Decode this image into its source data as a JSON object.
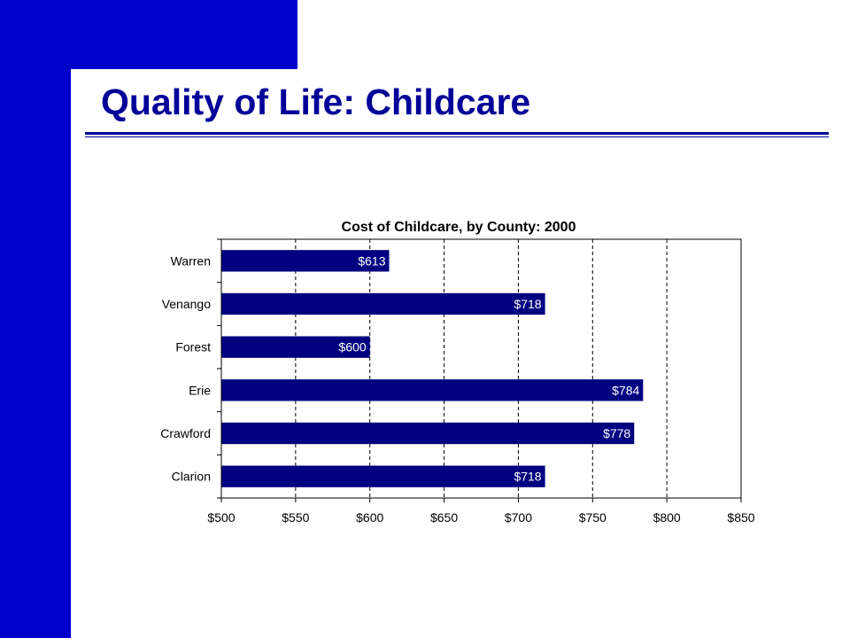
{
  "slide": {
    "title": "Quality of Life:  Childcare",
    "colors": {
      "accent": "#0000cc",
      "title": "#000099",
      "bar": "#000080"
    }
  },
  "chart_data": {
    "type": "bar",
    "orientation": "horizontal",
    "title": "Cost of Childcare, by County: 2000",
    "categories": [
      "Warren",
      "Venango",
      "Forest",
      "Erie",
      "Crawford",
      "Clarion"
    ],
    "values": [
      613,
      718,
      600,
      784,
      778,
      718
    ],
    "data_labels": [
      "$613",
      "$718",
      "$600",
      "$784",
      "$778",
      "$718"
    ],
    "x_ticks": [
      500,
      550,
      600,
      650,
      700,
      750,
      800,
      850
    ],
    "x_tick_labels": [
      "$500",
      "$550",
      "$600",
      "$650",
      "$700",
      "$750",
      "$800",
      "$850"
    ],
    "xlim": [
      500,
      850
    ],
    "grid": "vertical dashed",
    "legend": "none",
    "bar_color": "#000080",
    "label_color": "#ffffff"
  }
}
